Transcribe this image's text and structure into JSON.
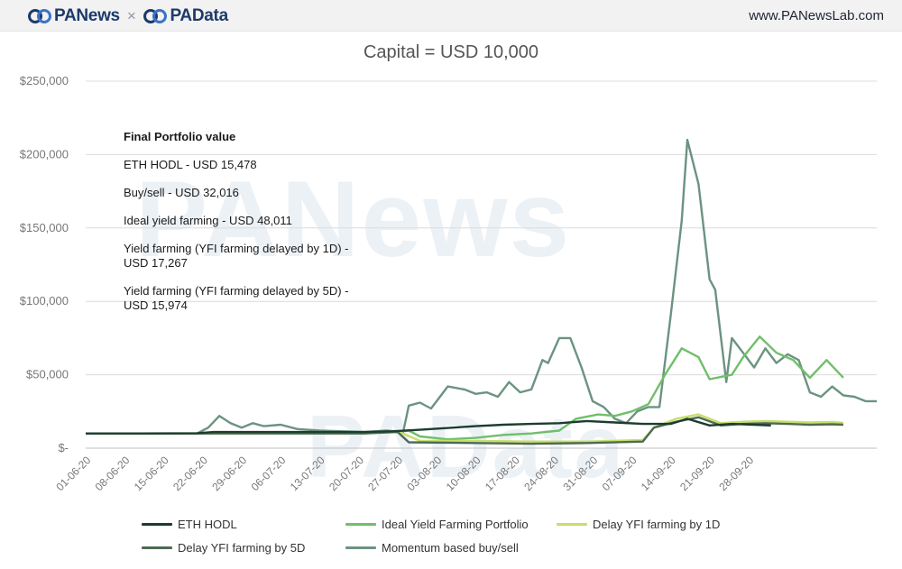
{
  "header": {
    "brand_left": "PANews",
    "brand_sep": "×",
    "brand_right": "PAData",
    "site": "www.PANewsLab.com",
    "logo_icon": "panews-logo-icon"
  },
  "watermark": {
    "line1": "PANews",
    "line2": "PAData"
  },
  "annotation": {
    "title": "Final Portfolio value",
    "rows": [
      "ETH HODL - USD 15,478",
      "Buy/sell - USD 32,016",
      "Ideal yield farming - USD 48,011",
      "Yield farming (YFI farming delayed by 1D) - USD 17,267",
      "Yield farming (YFI farming delayed by 5D) - USD 15,974"
    ]
  },
  "chart_data": {
    "type": "line",
    "title": "Capital = USD 10,000",
    "xlabel": "",
    "ylabel": "",
    "ylim": [
      0,
      250000
    ],
    "yticks": [
      0,
      50000,
      100000,
      150000,
      200000,
      250000
    ],
    "ytick_labels": [
      "$-",
      "$50,000",
      "$100,000",
      "$150,000",
      "$200,000",
      "$250,000"
    ],
    "x_start": "01-06-20",
    "x_days": 124,
    "xtick_labels": [
      "01-06-20",
      "08-06-20",
      "15-06-20",
      "22-06-20",
      "29-06-20",
      "06-07-20",
      "13-07-20",
      "20-07-20",
      "27-07-20",
      "03-08-20",
      "10-08-20",
      "17-08-20",
      "24-08-20",
      "31-08-20",
      "07-09-20",
      "14-09-20",
      "21-09-20",
      "28-09-20"
    ],
    "grid": true,
    "legend_position": "bottom",
    "series": [
      {
        "name": "ETH HODL",
        "color": "#1c3d2e",
        "width": 2.4,
        "points": [
          [
            0,
            10000
          ],
          [
            10,
            10000
          ],
          [
            20,
            10200
          ],
          [
            23,
            11000
          ],
          [
            30,
            11000
          ],
          [
            40,
            11000
          ],
          [
            50,
            11000
          ],
          [
            55,
            11500
          ],
          [
            60,
            12500
          ],
          [
            70,
            15000
          ],
          [
            75,
            16000
          ],
          [
            80,
            16500
          ],
          [
            85,
            17000
          ],
          [
            90,
            18500
          ],
          [
            95,
            17500
          ],
          [
            100,
            16500
          ],
          [
            105,
            16500
          ],
          [
            108,
            20000
          ],
          [
            112,
            15500
          ],
          [
            116,
            16500
          ],
          [
            120,
            16000
          ],
          [
            123,
            15478
          ]
        ]
      },
      {
        "name": "Ideal Yield Farming Portfolio",
        "color": "#6fbf6a",
        "width": 2.4,
        "points": [
          [
            0,
            10000
          ],
          [
            20,
            10000
          ],
          [
            30,
            10000
          ],
          [
            40,
            10000
          ],
          [
            50,
            10000
          ],
          [
            55,
            11000
          ],
          [
            58,
            12000
          ],
          [
            60,
            8000
          ],
          [
            65,
            6000
          ],
          [
            70,
            7000
          ],
          [
            75,
            9000
          ],
          [
            80,
            10000
          ],
          [
            85,
            12000
          ],
          [
            88,
            20000
          ],
          [
            92,
            23000
          ],
          [
            95,
            22000
          ],
          [
            98,
            25000
          ],
          [
            101,
            30000
          ],
          [
            104,
            50000
          ],
          [
            107,
            68000
          ],
          [
            110,
            62000
          ],
          [
            112,
            47000
          ],
          [
            116,
            50000
          ],
          [
            118,
            62000
          ],
          [
            121,
            76000
          ],
          [
            124,
            65000
          ],
          [
            127,
            60000
          ],
          [
            130,
            48000
          ],
          [
            133,
            60000
          ],
          [
            136,
            48011
          ]
        ]
      },
      {
        "name": "Delay YFI farming by 1D",
        "color": "#c9dd6a",
        "width": 2.4,
        "points": [
          [
            0,
            10000
          ],
          [
            20,
            10000
          ],
          [
            30,
            10000
          ],
          [
            40,
            10500
          ],
          [
            50,
            10500
          ],
          [
            56,
            11500
          ],
          [
            60,
            5000
          ],
          [
            70,
            5000
          ],
          [
            80,
            4500
          ],
          [
            90,
            4500
          ],
          [
            100,
            5500
          ],
          [
            102,
            14000
          ],
          [
            106,
            20000
          ],
          [
            110,
            23000
          ],
          [
            114,
            17000
          ],
          [
            118,
            18000
          ],
          [
            122,
            18500
          ],
          [
            126,
            18000
          ],
          [
            130,
            17500
          ],
          [
            134,
            17800
          ],
          [
            136,
            17267
          ]
        ]
      },
      {
        "name": "Delay YFI farming by 5D",
        "color": "#4d6b52",
        "width": 2.4,
        "points": [
          [
            0,
            10000
          ],
          [
            20,
            10000
          ],
          [
            30,
            10000
          ],
          [
            40,
            10000
          ],
          [
            50,
            10000
          ],
          [
            56,
            11000
          ],
          [
            58,
            4000
          ],
          [
            70,
            3500
          ],
          [
            80,
            3000
          ],
          [
            90,
            3500
          ],
          [
            100,
            4500
          ],
          [
            102,
            14000
          ],
          [
            106,
            18000
          ],
          [
            110,
            21000
          ],
          [
            114,
            15500
          ],
          [
            118,
            16500
          ],
          [
            122,
            17000
          ],
          [
            126,
            16500
          ],
          [
            130,
            16000
          ],
          [
            134,
            16300
          ],
          [
            136,
            15974
          ]
        ]
      },
      {
        "name": "Momentum based buy/sell",
        "color": "#6b9380",
        "width": 2.4,
        "points": [
          [
            0,
            10000
          ],
          [
            15,
            10000
          ],
          [
            20,
            10000
          ],
          [
            22,
            14000
          ],
          [
            24,
            22000
          ],
          [
            26,
            17000
          ],
          [
            28,
            14000
          ],
          [
            30,
            17000
          ],
          [
            32,
            15000
          ],
          [
            35,
            16000
          ],
          [
            38,
            13000
          ],
          [
            42,
            12000
          ],
          [
            46,
            11500
          ],
          [
            50,
            11000
          ],
          [
            54,
            12000
          ],
          [
            57,
            11000
          ],
          [
            58,
            29000
          ],
          [
            60,
            31000
          ],
          [
            62,
            27000
          ],
          [
            65,
            42000
          ],
          [
            68,
            40000
          ],
          [
            70,
            37000
          ],
          [
            72,
            38000
          ],
          [
            74,
            35000
          ],
          [
            76,
            45000
          ],
          [
            78,
            38000
          ],
          [
            80,
            40000
          ],
          [
            82,
            60000
          ],
          [
            83,
            58000
          ],
          [
            85,
            75000
          ],
          [
            87,
            75000
          ],
          [
            89,
            55000
          ],
          [
            91,
            32000
          ],
          [
            93,
            28000
          ],
          [
            95,
            20000
          ],
          [
            97,
            17000
          ],
          [
            99,
            25000
          ],
          [
            101,
            28000
          ],
          [
            103,
            28000
          ],
          [
            105,
            90000
          ],
          [
            107,
            155000
          ],
          [
            108,
            210000
          ],
          [
            110,
            180000
          ],
          [
            112,
            115000
          ],
          [
            113,
            108000
          ],
          [
            115,
            45000
          ],
          [
            116,
            75000
          ],
          [
            118,
            65000
          ],
          [
            120,
            55000
          ],
          [
            122,
            68000
          ],
          [
            124,
            58000
          ],
          [
            126,
            64000
          ],
          [
            128,
            60000
          ],
          [
            130,
            38000
          ],
          [
            132,
            35000
          ],
          [
            134,
            42000
          ],
          [
            136,
            36000
          ],
          [
            138,
            35000
          ],
          [
            140,
            32000
          ],
          [
            142,
            32016
          ]
        ]
      }
    ]
  }
}
